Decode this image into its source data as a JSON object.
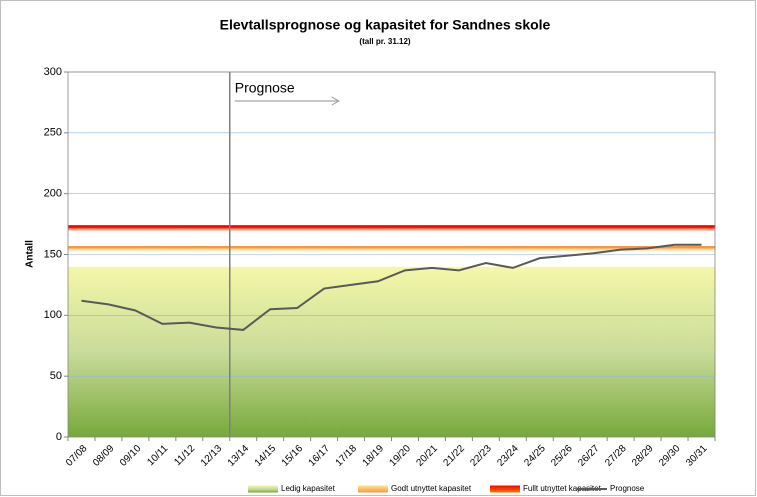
{
  "chart_data": {
    "type": "area_line",
    "title": "Elevtallsprognose og kapasitet for Sandnes skole",
    "subtitle": "(tall pr. 31.12)",
    "y_label": "Antall",
    "annotation": "Prognose",
    "categories": [
      "07/08",
      "08/09",
      "09/10",
      "10/11",
      "11/12",
      "12/13",
      "13/14",
      "14/15",
      "15/16",
      "16/17",
      "17/18",
      "18/19",
      "19/20",
      "20/21",
      "21/22",
      "22/23",
      "23/24",
      "24/25",
      "25/26",
      "26/27",
      "27/28",
      "28/29",
      "29/30",
      "30/31"
    ],
    "series": [
      {
        "name": "Ledig kapasitet",
        "color": "#9bbb59",
        "kind": "area",
        "values": [
          140,
          140,
          140,
          140,
          140,
          140,
          140,
          140,
          140,
          140,
          140,
          140,
          140,
          140,
          140,
          140,
          140,
          140,
          140,
          140,
          140,
          140,
          140,
          140
        ]
      },
      {
        "name": "Godt utnyttet kapasitet",
        "color": "#f79646",
        "kind": "area",
        "values": [
          17,
          17,
          17,
          17,
          17,
          17,
          17,
          17,
          17,
          17,
          17,
          17,
          17,
          17,
          17,
          17,
          17,
          17,
          17,
          17,
          17,
          17,
          17,
          17
        ]
      },
      {
        "name": "Fullt utnyttet kapasitet",
        "color": "#ff0000",
        "kind": "area",
        "values": [
          17,
          17,
          17,
          17,
          17,
          17,
          17,
          17,
          17,
          17,
          17,
          17,
          17,
          17,
          17,
          17,
          17,
          17,
          17,
          17,
          17,
          17,
          17,
          17
        ]
      },
      {
        "name": "Prognose",
        "color": "#595959",
        "kind": "line",
        "values": [
          112,
          109,
          104,
          93,
          94,
          90,
          88,
          105,
          106,
          122,
          125,
          128,
          137,
          139,
          137,
          143,
          139,
          147,
          149,
          151,
          154,
          155,
          158,
          158
        ]
      }
    ],
    "ylim": [
      0,
      300
    ],
    "yticks": [
      0,
      50,
      100,
      150,
      200,
      250,
      300
    ],
    "grid": true
  }
}
